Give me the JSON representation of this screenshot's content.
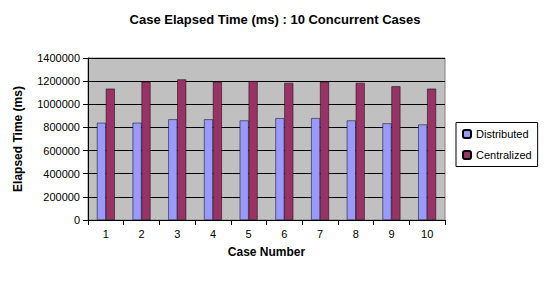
{
  "chart_data": {
    "type": "bar",
    "title": "Case Elapsed Time (ms) : 10 Concurrent Cases",
    "x_label": "Case Number",
    "y_label": "Elapsed Time (ms)",
    "categories": [
      "1",
      "2",
      "3",
      "4",
      "5",
      "6",
      "7",
      "8",
      "9",
      "10"
    ],
    "series": [
      {
        "name": "Distributed",
        "color": "#9999ff",
        "values": [
          840000,
          840000,
          870000,
          870000,
          860000,
          880000,
          880000,
          860000,
          835000,
          825000
        ]
      },
      {
        "name": "Centralized",
        "color": "#993366",
        "values": [
          1135000,
          1195000,
          1215000,
          1195000,
          1200000,
          1185000,
          1195000,
          1185000,
          1155000,
          1135000
        ]
      }
    ],
    "ylim": [
      0,
      1400000
    ],
    "yticks": [
      0,
      200000,
      400000,
      600000,
      800000,
      1000000,
      1200000,
      1400000
    ],
    "grid": true,
    "legend": "right"
  }
}
